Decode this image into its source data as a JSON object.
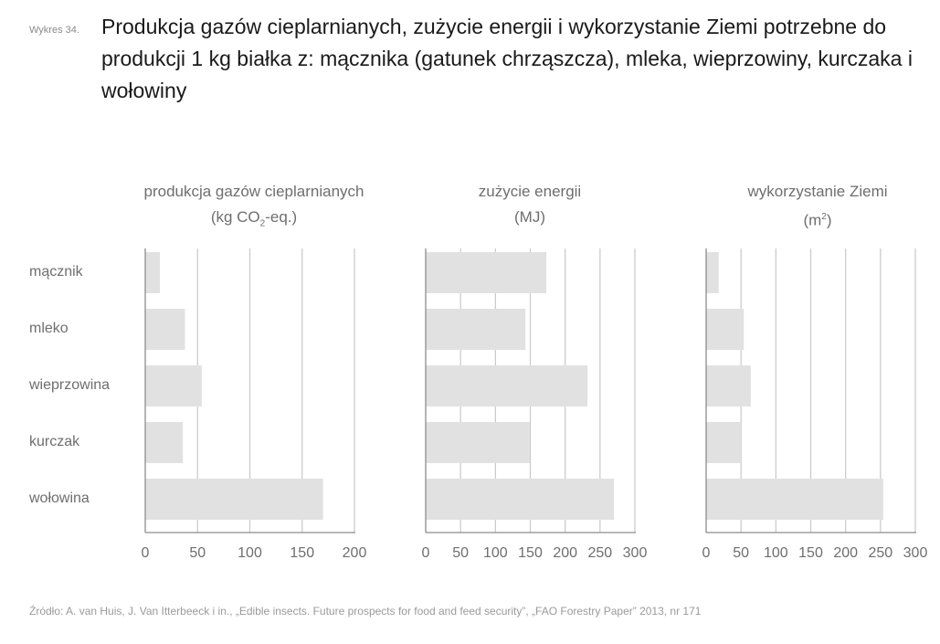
{
  "figure": {
    "label": "Wykres 34.",
    "title": "Produkcja gazów cieplarnianych, zużycie energii i wykorzystanie Ziemi potrzebne do produkcji 1 kg białka z: mącznika (gatunek chrząszcza), mleka, wieprzowiny, kurczaka i wołowiny",
    "source": "Źródło: A. van Huis, J. Van Itterbeeck i in., „Edible insects. Future prospects for food and feed security”, „FAO Forestry Paper” 2013, nr 171"
  },
  "colors": {
    "bar": "#e1e1e1",
    "grid": "#c8c8c8",
    "axis": "#8c8c8c",
    "text": "#6e6e6e"
  },
  "chart_data": [
    {
      "type": "bar",
      "orientation": "horizontal",
      "title": "produkcja gazów cieplarnianych",
      "unit_prefix": "(kg CO",
      "unit_sub": "2",
      "unit_suffix": "-eq.)",
      "categories": [
        "mącznik",
        "mleko",
        "wieprzowina",
        "kurczak",
        "wołowina"
      ],
      "values": [
        14,
        38,
        54,
        36,
        170
      ],
      "xlim": [
        0,
        200
      ],
      "ticks": [
        0,
        50,
        100,
        150,
        200
      ],
      "grid": true
    },
    {
      "type": "bar",
      "orientation": "horizontal",
      "title": "zużycie energii",
      "unit_prefix": "(MJ)",
      "categories": [
        "mącznik",
        "mleko",
        "wieprzowina",
        "kurczak",
        "wołowina"
      ],
      "values": [
        173,
        143,
        232,
        149,
        270
      ],
      "xlim": [
        0,
        300
      ],
      "ticks": [
        0,
        50,
        100,
        150,
        200,
        250,
        300
      ],
      "grid": true
    },
    {
      "type": "bar",
      "orientation": "horizontal",
      "title": "wykorzystanie Ziemi",
      "unit_prefix": "(m",
      "unit_sup": "2",
      "unit_suffix": ")",
      "categories": [
        "mącznik",
        "mleko",
        "wieprzowina",
        "kurczak",
        "wołowina"
      ],
      "values": [
        18,
        54,
        64,
        50,
        254
      ],
      "xlim": [
        0,
        300
      ],
      "ticks": [
        0,
        50,
        100,
        150,
        200,
        250,
        300
      ],
      "grid": true
    }
  ]
}
